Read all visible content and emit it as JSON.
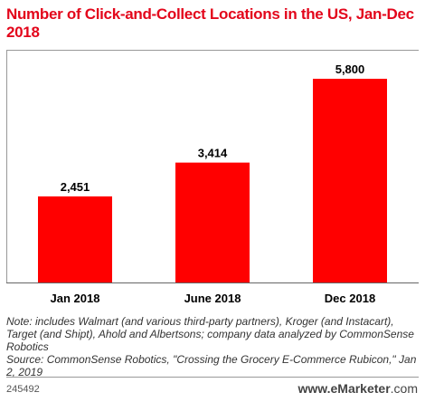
{
  "chart_data": {
    "type": "bar",
    "title": "Number of Click-and-Collect Locations in the US, Jan-Dec 2018",
    "categories": [
      "Jan 2018",
      "June 2018",
      "Dec 2018"
    ],
    "values": [
      2451,
      3414,
      5800
    ],
    "value_labels": [
      "2,451",
      "3,414",
      "5,800"
    ],
    "ylim": [
      0,
      6600
    ],
    "grid": false,
    "legend": "none",
    "bar_color": "#ff0000",
    "title_color": "#e3061b"
  },
  "notes": {
    "note": "Note: includes Walmart (and various third-party partners), Kroger (and Instacart), Target (and Shipt), Ahold and Albertsons; company data analyzed by CommonSense Robotics",
    "source": "Source: CommonSense Robotics, \"Crossing the Grocery E-Commerce Rubicon,\" Jan 2, 2019"
  },
  "footer": {
    "chart_id": "245492",
    "brand_prefix": "www.",
    "brand_name": "eMarketer",
    "brand_suffix": ".com"
  }
}
